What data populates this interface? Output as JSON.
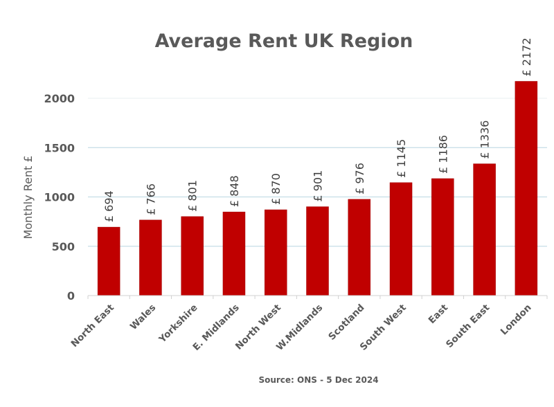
{
  "chart_data": {
    "type": "bar",
    "title": "Average Rent UK Region",
    "ylabel": "Monthly Rent £",
    "xlabel": "",
    "source": "Source: ONS - 5 Dec 2024",
    "categories": [
      "North East",
      "Wales",
      "Yorkshire",
      "E. Midlands",
      "North West",
      "W.Midlands",
      "Scotland",
      "South West",
      "East",
      "South East",
      "London"
    ],
    "values": [
      694,
      766,
      801,
      848,
      870,
      901,
      976,
      1145,
      1186,
      1336,
      2172
    ],
    "data_label_prefix": "£ ",
    "ylim": [
      0,
      2000
    ],
    "yticks": [
      0,
      500,
      1000,
      1500,
      2000
    ],
    "grid": true,
    "legend": "none",
    "colors": {
      "bar": "#c00000",
      "grid": "#c5dde6",
      "axis": "#d0d0d0",
      "text": "#595959"
    }
  }
}
